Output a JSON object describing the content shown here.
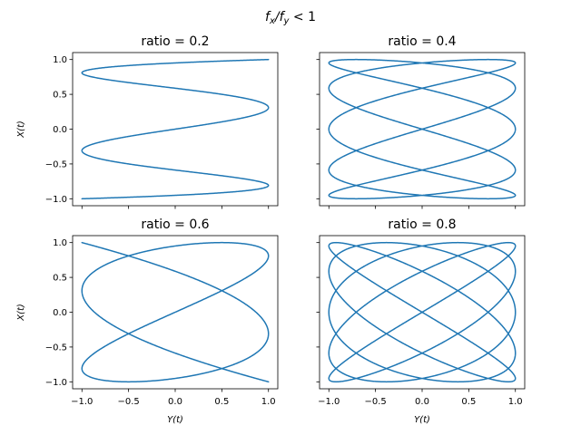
{
  "figure": {
    "suptitle_main": "f",
    "suptitle_sub1": "x",
    "suptitle_slash": "/f",
    "suptitle_sub2": "y",
    "suptitle_tail": " < 1",
    "line_color": "#1f77b4"
  },
  "chart_data": [
    {
      "type": "line",
      "title": "ratio = 0.2",
      "xlabel": "",
      "ylabel": "X(t)",
      "xlim": [
        -1.1,
        1.1
      ],
      "ylim": [
        -1.1,
        1.1
      ],
      "xticks": [
        -1.0,
        -0.5,
        0.0,
        0.5,
        1.0
      ],
      "xtick_labels": [
        "",
        "",
        "",
        "",
        ""
      ],
      "yticks": [
        -1.0,
        -0.5,
        0.0,
        0.5,
        1.0
      ],
      "ytick_labels": [
        "−1.0",
        "−0.5",
        "0.0",
        "0.5",
        "1.0"
      ],
      "grid": false,
      "series": [
        {
          "x_function": "sin(2*pi*1*t)",
          "y_function": "sin(2*pi*5*t)",
          "t_range": [
            0,
            1
          ],
          "ratio": 0.2
        }
      ]
    },
    {
      "type": "line",
      "title": "ratio = 0.4",
      "xlabel": "",
      "ylabel": "",
      "xlim": [
        -1.1,
        1.1
      ],
      "ylim": [
        -1.1,
        1.1
      ],
      "xticks": [
        -1.0,
        -0.5,
        0.0,
        0.5,
        1.0
      ],
      "xtick_labels": [
        "",
        "",
        "",
        "",
        ""
      ],
      "yticks": [
        -1.0,
        -0.5,
        0.0,
        0.5,
        1.0
      ],
      "ytick_labels": [
        "",
        "",
        "",
        "",
        ""
      ],
      "grid": false,
      "series": [
        {
          "x_function": "sin(2*pi*2*t)",
          "y_function": "sin(2*pi*5*t)",
          "t_range": [
            0,
            1
          ],
          "ratio": 0.4
        }
      ]
    },
    {
      "type": "line",
      "title": "ratio = 0.6",
      "xlabel": "Y(t)",
      "ylabel": "X(t)",
      "xlim": [
        -1.1,
        1.1
      ],
      "ylim": [
        -1.1,
        1.1
      ],
      "xticks": [
        -1.0,
        -0.5,
        0.0,
        0.5,
        1.0
      ],
      "xtick_labels": [
        "−1.0",
        "−0.5",
        "0.0",
        "0.5",
        "1.0"
      ],
      "yticks": [
        -1.0,
        -0.5,
        0.0,
        0.5,
        1.0
      ],
      "ytick_labels": [
        "−1.0",
        "−0.5",
        "0.0",
        "0.5",
        "1.0"
      ],
      "grid": false,
      "series": [
        {
          "x_function": "sin(2*pi*3*t)",
          "y_function": "sin(2*pi*5*t)",
          "t_range": [
            0,
            1
          ],
          "ratio": 0.6
        }
      ]
    },
    {
      "type": "line",
      "title": "ratio = 0.8",
      "xlabel": "Y(t)",
      "ylabel": "",
      "xlim": [
        -1.1,
        1.1
      ],
      "ylim": [
        -1.1,
        1.1
      ],
      "xticks": [
        -1.0,
        -0.5,
        0.0,
        0.5,
        1.0
      ],
      "xtick_labels": [
        "−1.0",
        "−0.5",
        "0.0",
        "0.5",
        "1.0"
      ],
      "yticks": [
        -1.0,
        -0.5,
        0.0,
        0.5,
        1.0
      ],
      "ytick_labels": [
        "",
        "",
        "",
        "",
        ""
      ],
      "grid": false,
      "series": [
        {
          "x_function": "sin(2*pi*4*t)",
          "y_function": "sin(2*pi*5*t)",
          "t_range": [
            0,
            1
          ],
          "ratio": 0.8
        }
      ]
    }
  ]
}
